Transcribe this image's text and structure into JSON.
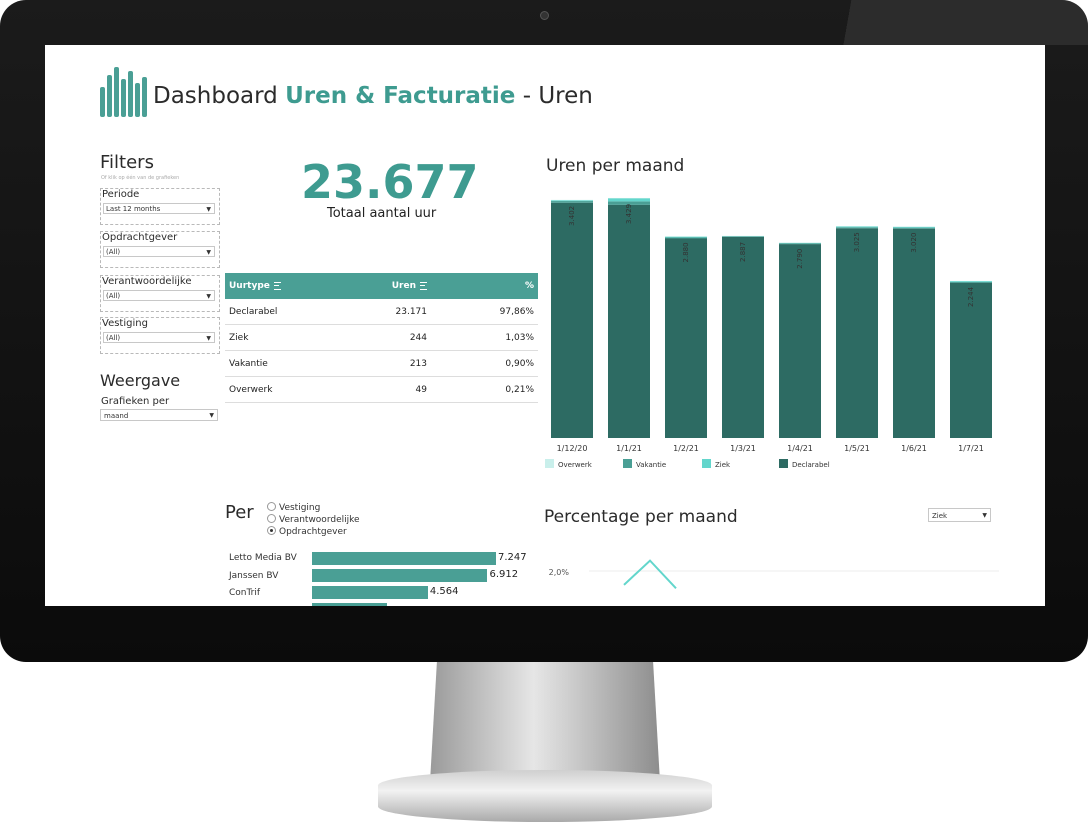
{
  "header": {
    "title_prefix": "Dashboard",
    "title_highlight": "Uren & Facturatie",
    "title_suffix": "- Uren"
  },
  "filters": {
    "heading": "Filters",
    "hint": "Of klik op één van de grafieken",
    "items": [
      {
        "label": "Periode",
        "value": "Last 12 months"
      },
      {
        "label": "Opdrachtgever",
        "value": "(All)"
      },
      {
        "label": "Verantwoordelijke",
        "value": "(All)"
      },
      {
        "label": "Vestiging",
        "value": "(All)"
      }
    ]
  },
  "weergave": {
    "heading": "Weergave",
    "label": "Grafieken per",
    "value": "maand"
  },
  "kpi": {
    "value": "23.677",
    "label": "Totaal aantal uur"
  },
  "table": {
    "headers": [
      "Uurtype",
      "Uren",
      "%"
    ],
    "rows": [
      [
        "Declarabel",
        "23.171",
        "97,86%"
      ],
      [
        "Ziek",
        "244",
        "1,03%"
      ],
      [
        "Vakantie",
        "213",
        "0,90%"
      ],
      [
        "Overwerk",
        "49",
        "0,21%"
      ]
    ]
  },
  "per": {
    "heading": "Per",
    "options": [
      "Vestiging",
      "Verantwoordelijke",
      "Opdrachtgever"
    ],
    "selected": "Opdrachtgever",
    "bars": [
      {
        "label": "Letto Media BV",
        "value": 7247,
        "display": "7.247"
      },
      {
        "label": "Janssen BV",
        "value": 6912,
        "display": "6.912"
      },
      {
        "label": "ConTrif",
        "value": 4564,
        "display": "4.564"
      }
    ]
  },
  "percentage": {
    "heading": "Percentage per maand",
    "select_value": "Ziek",
    "y_tick": "2,0%"
  },
  "colors": {
    "accent": "#3e9b90",
    "declarabel": "#2d6b63",
    "vakantie": "#4a9f95",
    "ziek": "#63d6cc",
    "overwerk": "#c9efeb"
  },
  "chart_data": [
    {
      "type": "bar",
      "title": "Uren per maand",
      "categories": [
        "1/12/20",
        "1/1/21",
        "1/2/21",
        "1/3/21",
        "1/4/21",
        "1/5/21",
        "1/6/21",
        "1/7/21"
      ],
      "totals": [
        "3.402",
        "3.429",
        "2.880",
        "2.887",
        "2.790",
        "3.025",
        "3.020",
        "2.244"
      ],
      "series": [
        {
          "name": "Declarabel",
          "values": [
            3360,
            3330,
            2850,
            2875,
            2770,
            2995,
            2990,
            2215
          ]
        },
        {
          "name": "Vakantie",
          "values": [
            25,
            50,
            15,
            7,
            12,
            15,
            15,
            15
          ]
        },
        {
          "name": "Ziek",
          "values": [
            12,
            45,
            12,
            4,
            6,
            12,
            12,
            12
          ]
        },
        {
          "name": "Overwerk",
          "values": [
            5,
            4,
            3,
            1,
            2,
            3,
            3,
            2
          ]
        }
      ],
      "legend": [
        "Overwerk",
        "Vakantie",
        "Ziek",
        "Declarabel"
      ],
      "ylim": [
        0,
        3500
      ]
    },
    {
      "type": "line",
      "title": "Percentage per maand",
      "y_ticks": [
        "2,0%"
      ],
      "series": [
        {
          "name": "Ziek",
          "values": [
            1.2,
            2.6,
            1.0
          ]
        }
      ],
      "ylim": [
        0,
        3
      ]
    }
  ]
}
